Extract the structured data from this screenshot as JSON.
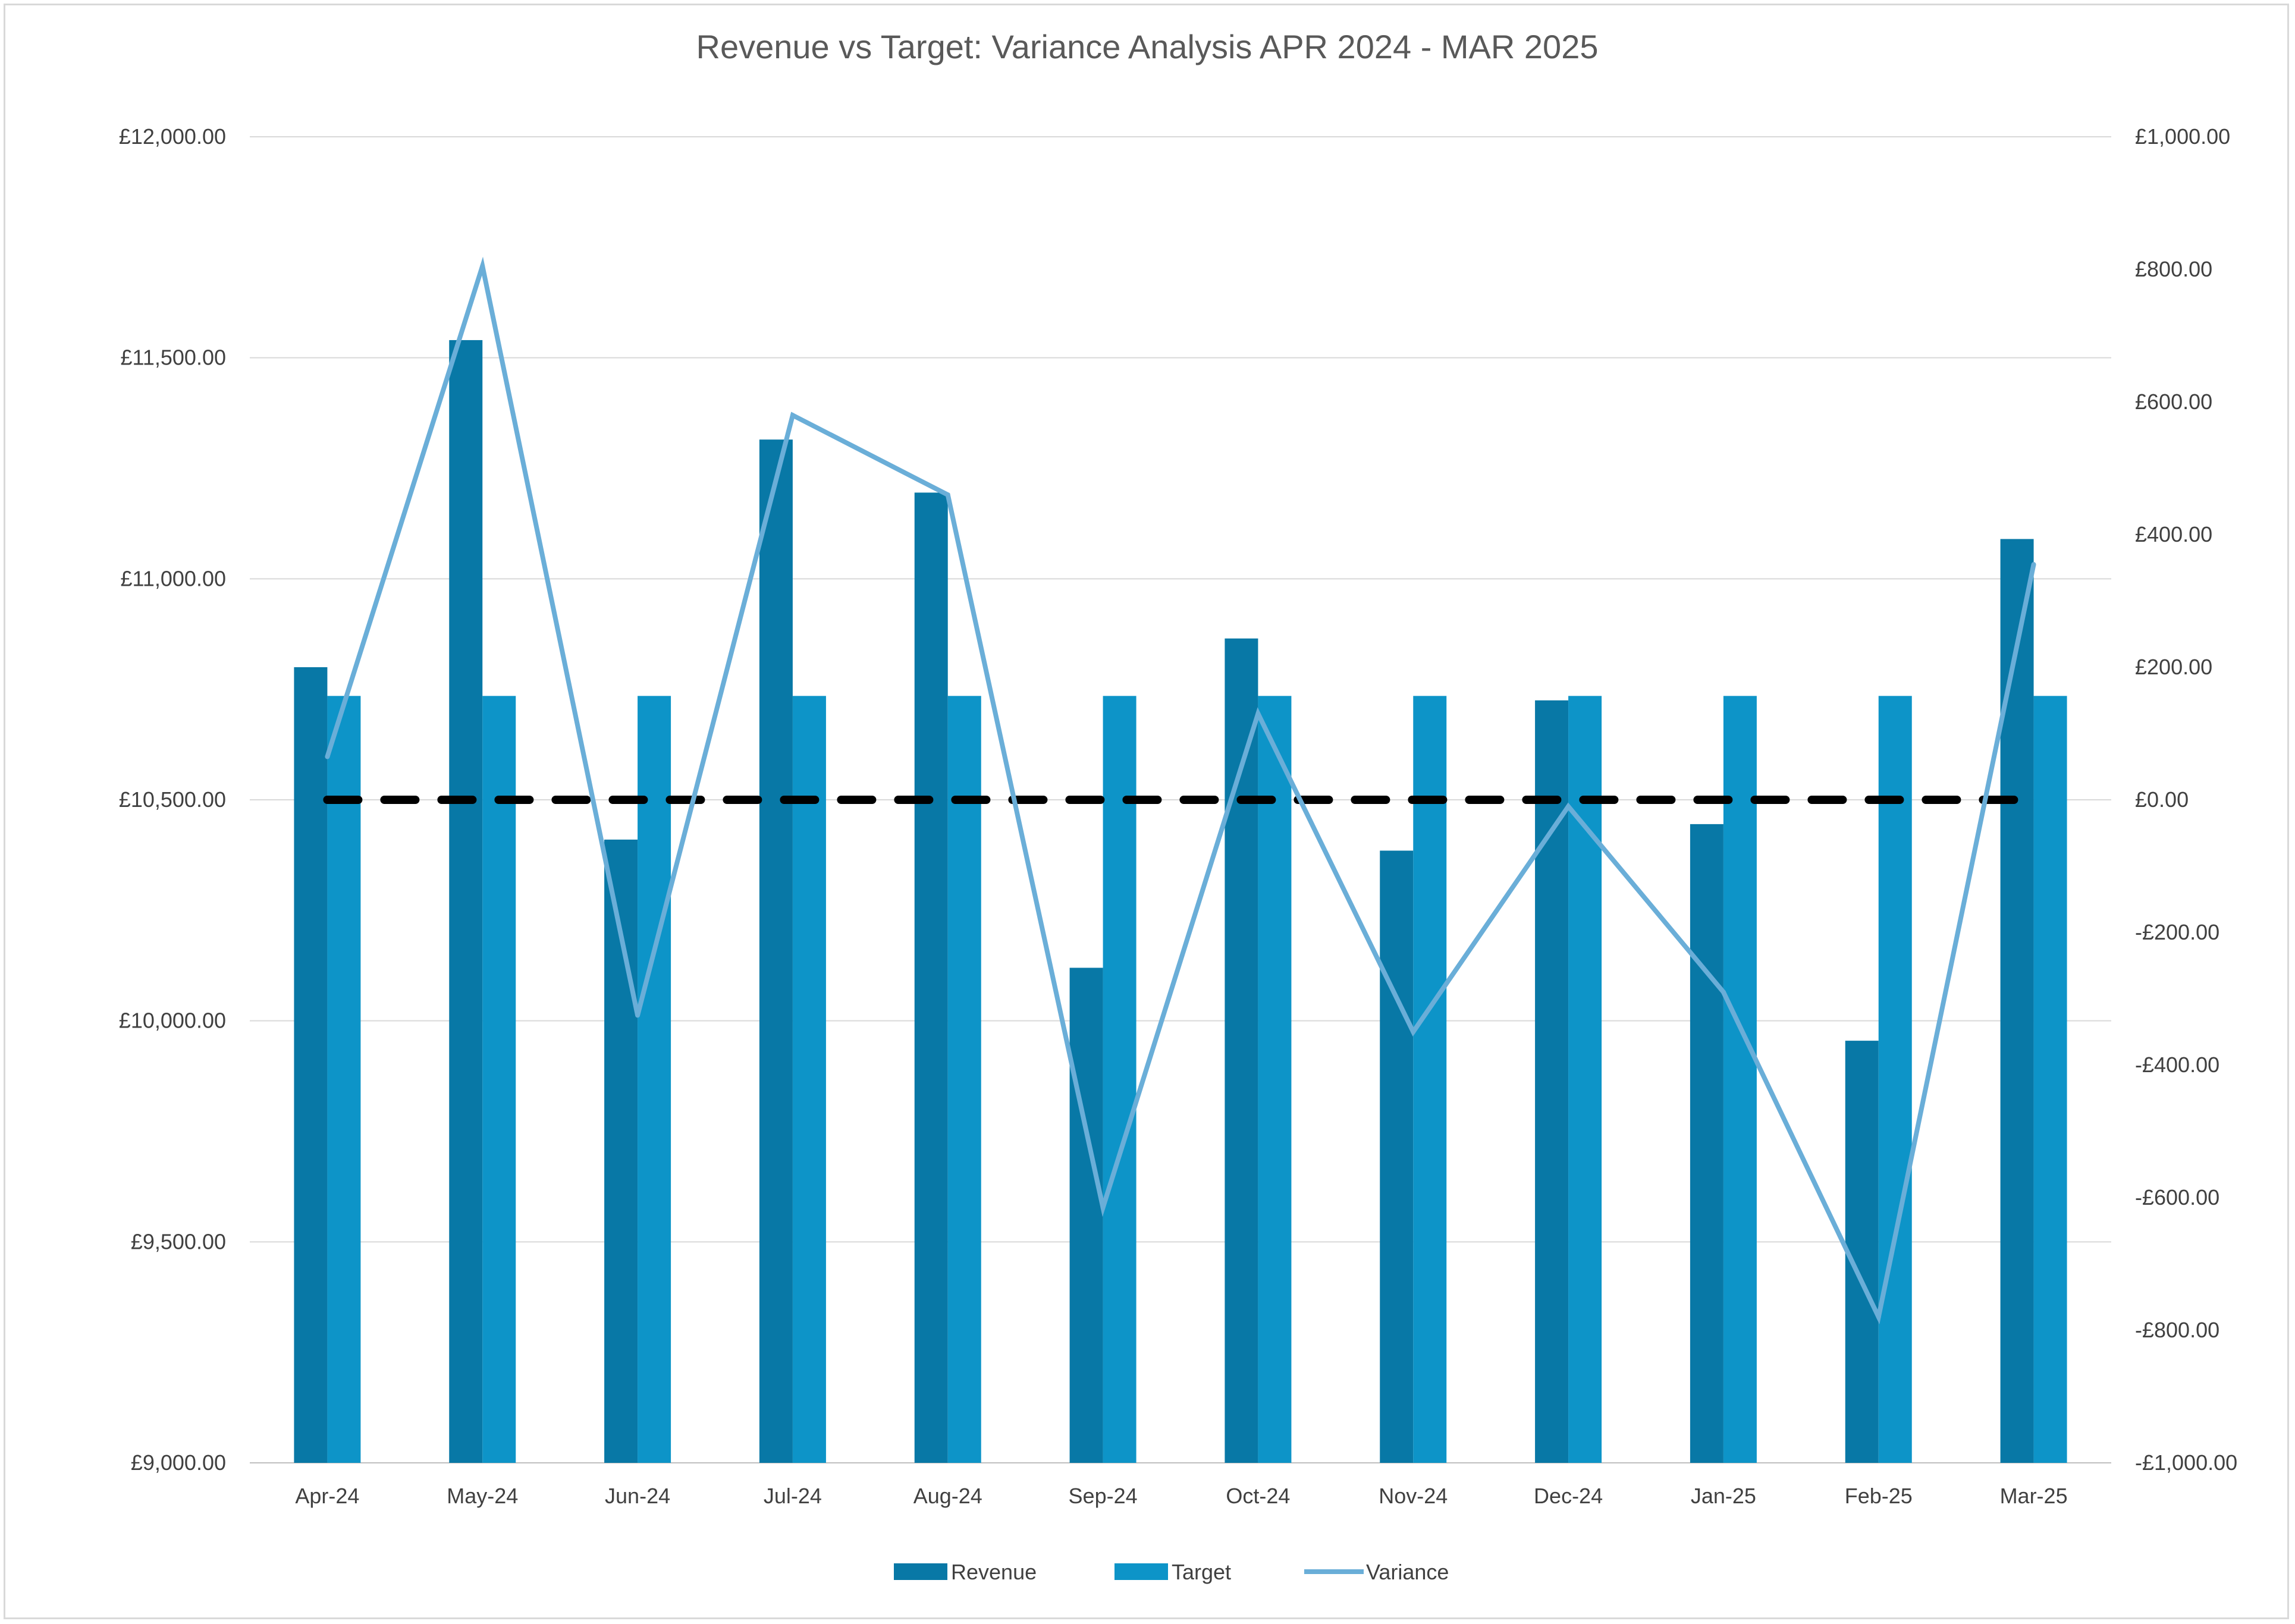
{
  "chart_data": {
    "type": "bar",
    "title": "Revenue vs Target: Variance Analysis APR 2024 - MAR 2025",
    "categories": [
      "Apr-24",
      "May-24",
      "Jun-24",
      "Jul-24",
      "Aug-24",
      "Sep-24",
      "Oct-24",
      "Nov-24",
      "Dec-24",
      "Jan-25",
      "Feb-25",
      "Mar-25"
    ],
    "series": [
      {
        "name": "Revenue",
        "type": "bar",
        "axis": "left",
        "color": "#0878A6",
        "values": [
          10800,
          11540,
          10410,
          11315,
          11195,
          10120,
          10865,
          10385,
          10725,
          10445,
          9955,
          11090
        ]
      },
      {
        "name": "Target",
        "type": "bar",
        "axis": "left",
        "color": "#0D94C8",
        "values": [
          10735,
          10735,
          10735,
          10735,
          10735,
          10735,
          10735,
          10735,
          10735,
          10735,
          10735,
          10735
        ]
      },
      {
        "name": "Variance",
        "type": "line",
        "axis": "right",
        "color": "#6AAED8",
        "values": [
          65,
          805,
          -325,
          580,
          460,
          -615,
          130,
          -350,
          -10,
          -290,
          -780,
          355
        ]
      }
    ],
    "zero_line": {
      "value": 0,
      "axis": "right",
      "color": "#000000",
      "style": "dashed"
    },
    "y_left": {
      "min": 9000,
      "max": 12000,
      "step": 500,
      "tick_labels": [
        "£9,000.00",
        "£9,500.00",
        "£10,000.00",
        "£10,500.00",
        "£11,000.00",
        "£11,500.00",
        "£12,000.00"
      ]
    },
    "y_right": {
      "min": -1000,
      "max": 1000,
      "step": 200,
      "tick_labels": [
        "-£1,000.00",
        "-£800.00",
        "-£600.00",
        "-£400.00",
        "-£200.00",
        "£0.00",
        "£200.00",
        "£400.00",
        "£600.00",
        "£800.00",
        "£1,000.00"
      ]
    },
    "grid": true,
    "legend_position": "bottom",
    "legend": [
      "Revenue",
      "Target",
      "Variance"
    ]
  }
}
